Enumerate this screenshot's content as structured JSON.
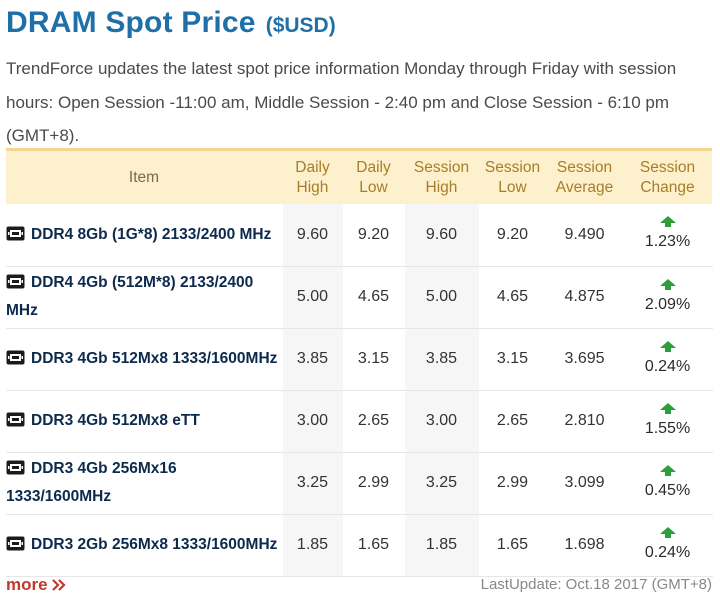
{
  "header": {
    "title": "DRAM Spot Price",
    "unit": "($USD)",
    "description": "TrendForce updates the latest spot price information Monday through Friday with session hours: Open Session -11:00 am, Middle Session - 2:40 pm and Close Session - 6:10 pm (GMT+8)."
  },
  "table": {
    "columns": [
      {
        "label": "Item"
      },
      {
        "line1": "Daily",
        "line2": "High"
      },
      {
        "line1": "Daily",
        "line2": "Low"
      },
      {
        "line1": "Session",
        "line2": "High"
      },
      {
        "line1": "Session",
        "line2": "Low"
      },
      {
        "line1": "Session",
        "line2": "Average"
      },
      {
        "line1": "Session",
        "line2": "Change"
      }
    ],
    "rows": [
      {
        "item": "DDR4 8Gb (1G*8) 2133/2400 MHz",
        "daily_high": "9.60",
        "daily_low": "9.20",
        "session_high": "9.60",
        "session_low": "9.20",
        "session_average": "9.490",
        "change": "1.23%",
        "trend": "up"
      },
      {
        "item": "DDR4 4Gb (512M*8) 2133/2400 MHz",
        "daily_high": "5.00",
        "daily_low": "4.65",
        "session_high": "5.00",
        "session_low": "4.65",
        "session_average": "4.875",
        "change": "2.09%",
        "trend": "up"
      },
      {
        "item": "DDR3 4Gb 512Mx8 1333/1600MHz",
        "daily_high": "3.85",
        "daily_low": "3.15",
        "session_high": "3.85",
        "session_low": "3.15",
        "session_average": "3.695",
        "change": "0.24%",
        "trend": "up"
      },
      {
        "item": "DDR3 4Gb 512Mx8 eTT",
        "daily_high": "3.00",
        "daily_low": "2.65",
        "session_high": "3.00",
        "session_low": "2.65",
        "session_average": "2.810",
        "change": "1.55%",
        "trend": "up"
      },
      {
        "item": "DDR3 4Gb 256Mx16 1333/1600MHz",
        "daily_high": "3.25",
        "daily_low": "2.99",
        "session_high": "3.25",
        "session_low": "2.99",
        "session_average": "3.099",
        "change": "0.45%",
        "trend": "up"
      },
      {
        "item": "DDR3 2Gb 256Mx8 1333/1600MHz",
        "daily_high": "1.85",
        "daily_low": "1.65",
        "session_high": "1.85",
        "session_low": "1.65",
        "session_average": "1.698",
        "change": "0.24%",
        "trend": "up"
      }
    ]
  },
  "footer": {
    "more_label": "more",
    "last_update": "LastUpdate: Oct.18 2017 (GMT+8)"
  },
  "colors": {
    "title": "#1f6fa8",
    "header_bg": "#fdf0cc",
    "header_text": "#a87d2a",
    "up_arrow": "#2e9e3a",
    "more_link": "#c0392b"
  },
  "icons": {
    "item_icon": "memory-chip-icon",
    "trend_icon": "up-arrow-icon",
    "more_icon": "double-chevron-right-icon"
  }
}
